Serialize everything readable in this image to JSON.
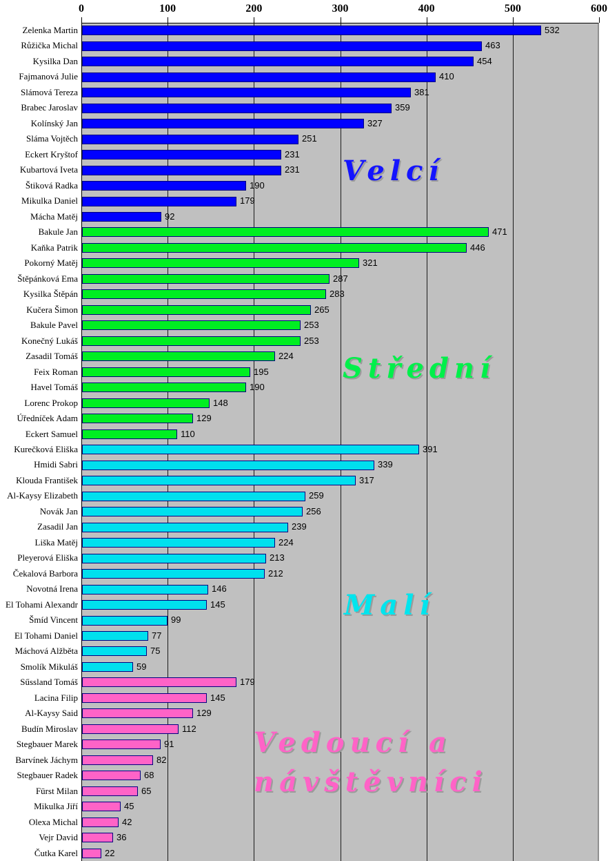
{
  "chart_data": {
    "type": "bar",
    "orientation": "horizontal",
    "title": "",
    "xlabel": "",
    "ylabel": "",
    "xlim": [
      0,
      600
    ],
    "x_ticks": [
      0,
      100,
      200,
      300,
      400,
      500,
      600
    ],
    "grid": true,
    "legend_position": "none",
    "colors": {
      "plot_background": "#c0c0c0",
      "page_background": "#ffffff",
      "bar_border": "#000080",
      "gridline": "#1a1a1a",
      "blue": "#0000ff",
      "green": "#00ee22",
      "cyan": "#00e0ee",
      "pink": "#ff63c7"
    },
    "groups": [
      {
        "label": "Velcí",
        "color": "#0000ff",
        "bars": [
          {
            "name": "Zelenka Martin",
            "value": 532
          },
          {
            "name": "Růžička Michal",
            "value": 463
          },
          {
            "name": "Kysilka Dan",
            "value": 454
          },
          {
            "name": "Fajmanová Julie",
            "value": 410
          },
          {
            "name": "Slámová Tereza",
            "value": 381
          },
          {
            "name": "Brabec Jaroslav",
            "value": 359
          },
          {
            "name": "Kolínský Jan",
            "value": 327
          },
          {
            "name": "Sláma Vojtěch",
            "value": 251
          },
          {
            "name": "Eckert Kryštof",
            "value": 231
          },
          {
            "name": "Kubartová Iveta",
            "value": 231
          },
          {
            "name": "Štiková Radka",
            "value": 190
          },
          {
            "name": "Mikulka Daniel",
            "value": 179
          },
          {
            "name": "Mácha Matěj",
            "value": 92
          }
        ]
      },
      {
        "label": "Střední",
        "color": "#00ee22",
        "bars": [
          {
            "name": "Bakule Jan",
            "value": 471
          },
          {
            "name": "Kaňka Patrik",
            "value": 446
          },
          {
            "name": "Pokorný Matěj",
            "value": 321
          },
          {
            "name": "Štěpánková Ema",
            "value": 287
          },
          {
            "name": "Kysilka Štěpán",
            "value": 283
          },
          {
            "name": "Kučera Šimon",
            "value": 265
          },
          {
            "name": "Bakule Pavel",
            "value": 253
          },
          {
            "name": "Konečný Lukáš",
            "value": 253
          },
          {
            "name": "Zasadil Tomáš",
            "value": 224
          },
          {
            "name": "Feix Roman",
            "value": 195
          },
          {
            "name": "Havel Tomáš",
            "value": 190
          },
          {
            "name": "Lorenc Prokop",
            "value": 148
          },
          {
            "name": "Úředníček Adam",
            "value": 129
          },
          {
            "name": "Eckert Samuel",
            "value": 110
          }
        ]
      },
      {
        "label": "Malí",
        "color": "#00e0ee",
        "bars": [
          {
            "name": "Kurečková Eliška",
            "value": 391
          },
          {
            "name": "Hmidi Sabri",
            "value": 339
          },
          {
            "name": "Klouda František",
            "value": 317
          },
          {
            "name": "Al-Kaysy Elizabeth",
            "value": 259
          },
          {
            "name": "Novák Jan",
            "value": 256
          },
          {
            "name": "Zasadil Jan",
            "value": 239
          },
          {
            "name": "Liška Matěj",
            "value": 224
          },
          {
            "name": "Pleyerová Eliška",
            "value": 213
          },
          {
            "name": "Čekalová Barbora",
            "value": 212
          },
          {
            "name": "Novotná Irena",
            "value": 146
          },
          {
            "name": "El Tohami Alexandr",
            "value": 145
          },
          {
            "name": "Šmíd Vincent",
            "value": 99
          },
          {
            "name": "El Tohami Daniel",
            "value": 77
          },
          {
            "name": "Máchová Alžběta",
            "value": 75
          },
          {
            "name": "Smolík Mikuláš",
            "value": 59
          }
        ]
      },
      {
        "label": "Vedoucí a návštěvníci",
        "color": "#ff63c7",
        "bars": [
          {
            "name": "Sűssland Tomáš",
            "value": 179
          },
          {
            "name": "Lacina Filip",
            "value": 145
          },
          {
            "name": "Al-Kaysy Said",
            "value": 129
          },
          {
            "name": "Budín Miroslav",
            "value": 112
          },
          {
            "name": "Stegbauer Marek",
            "value": 91
          },
          {
            "name": "Barvínek Jáchym",
            "value": 82
          },
          {
            "name": "Stegbauer Radek",
            "value": 68
          },
          {
            "name": "Fürst Milan",
            "value": 65
          },
          {
            "name": "Mikulka Jiří",
            "value": 45
          },
          {
            "name": "Olexa Michal",
            "value": 42
          },
          {
            "name": "Vejr David",
            "value": 36
          },
          {
            "name": "Čutka Karel",
            "value": 22
          }
        ]
      }
    ],
    "annotations": [
      {
        "lines": [
          "Velcí"
        ],
        "color": "#1414ff"
      },
      {
        "lines": [
          "Střední"
        ],
        "color": "#00f04a"
      },
      {
        "lines": [
          "Malí"
        ],
        "color": "#00e5ee"
      },
      {
        "lines": [
          "Vedoucí a",
          "návštěvníci"
        ],
        "color": "#ff63c7"
      }
    ]
  }
}
